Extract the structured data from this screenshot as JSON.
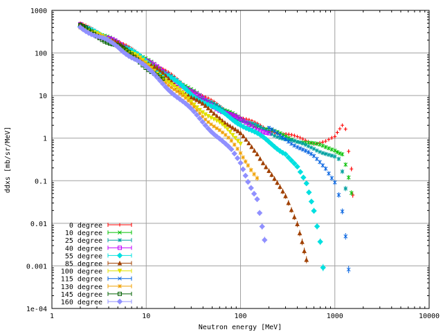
{
  "chart_data": {
    "type": "scatter",
    "title": "",
    "xlabel": "Neutron energy [MeV]",
    "ylabel": "ddxs [mb/sr/MeV]",
    "x_scale": "log",
    "y_scale": "log",
    "xlim": [
      1,
      10000
    ],
    "ylim": [
      0.0001,
      1000
    ],
    "x_ticks": [
      1,
      10,
      100,
      1000,
      10000
    ],
    "x_tick_labels": [
      "1",
      "10",
      "100",
      "1000",
      "10000"
    ],
    "y_ticks": [
      0.0001,
      0.001,
      0.01,
      0.1,
      1,
      10,
      100,
      1000
    ],
    "y_tick_labels": [
      "1e-04",
      "0.001",
      "0.01",
      "0.1",
      "1",
      "10",
      "100",
      "1000"
    ],
    "grid": true,
    "legend_position": "bottom-left",
    "series": [
      {
        "name": "0 degree",
        "color": "#ff0000",
        "marker": "plus",
        "points": [
          [
            2,
            480
          ],
          [
            3,
            300
          ],
          [
            5,
            180
          ],
          [
            8,
            100
          ],
          [
            15,
            40
          ],
          [
            30,
            14
          ],
          [
            60,
            5.5
          ],
          [
            100,
            3
          ],
          [
            200,
            1.6
          ],
          [
            400,
            1.0
          ],
          [
            600,
            0.8
          ],
          [
            800,
            0.85
          ],
          [
            1000,
            1.0
          ],
          [
            1200,
            1.9
          ],
          [
            1300,
            1.6
          ],
          [
            1400,
            0.5
          ],
          [
            1500,
            0.2
          ],
          [
            1550,
            0.05
          ]
        ]
      },
      {
        "name": "10 degree",
        "color": "#00c000",
        "marker": "x",
        "points": [
          [
            2,
            470
          ],
          [
            3,
            290
          ],
          [
            5,
            175
          ],
          [
            8,
            95
          ],
          [
            15,
            38
          ],
          [
            30,
            13
          ],
          [
            60,
            5.2
          ],
          [
            100,
            2.8
          ],
          [
            200,
            1.5
          ],
          [
            400,
            0.9
          ],
          [
            600,
            0.7
          ],
          [
            800,
            0.6
          ],
          [
            1000,
            0.55
          ],
          [
            1200,
            0.45
          ],
          [
            1300,
            0.25
          ],
          [
            1400,
            0.12
          ],
          [
            1500,
            0.05
          ]
        ]
      },
      {
        "name": "25 degree",
        "color": "#00a0a0",
        "marker": "star",
        "points": [
          [
            2,
            460
          ],
          [
            3,
            285
          ],
          [
            5,
            170
          ],
          [
            8,
            92
          ],
          [
            15,
            37
          ],
          [
            30,
            12.5
          ],
          [
            60,
            5
          ],
          [
            100,
            2.7
          ],
          [
            200,
            1.4
          ],
          [
            400,
            0.75
          ],
          [
            600,
            0.6
          ],
          [
            800,
            0.45
          ],
          [
            1000,
            0.35
          ],
          [
            1100,
            0.3
          ],
          [
            1200,
            0.15
          ],
          [
            1300,
            0.06
          ]
        ]
      },
      {
        "name": "40 degree",
        "color": "#c000ff",
        "marker": "square",
        "points": [
          [
            2,
            455
          ],
          [
            3,
            280
          ],
          [
            5,
            168
          ],
          [
            8,
            90
          ],
          [
            15,
            36
          ],
          [
            30,
            12
          ],
          [
            60,
            4.8
          ],
          [
            100,
            2.6
          ],
          [
            200,
            1.3
          ]
        ]
      },
      {
        "name": "55 degree",
        "color": "#00e0e0",
        "marker": "diamond",
        "points": [
          [
            2,
            450
          ],
          [
            3,
            275
          ],
          [
            5,
            165
          ],
          [
            8,
            88
          ],
          [
            15,
            35
          ],
          [
            30,
            11
          ],
          [
            60,
            4.2
          ],
          [
            100,
            2.2
          ],
          [
            200,
            0.8
          ],
          [
            300,
            0.45
          ],
          [
            400,
            0.2
          ],
          [
            500,
            0.08
          ],
          [
            600,
            0.02
          ],
          [
            700,
            0.004
          ],
          [
            750,
            0.001
          ]
        ]
      },
      {
        "name": "85 degree",
        "color": "#a04000",
        "marker": "triangle",
        "points": [
          [
            2,
            440
          ],
          [
            3,
            270
          ],
          [
            5,
            160
          ],
          [
            8,
            85
          ],
          [
            15,
            32
          ],
          [
            30,
            9
          ],
          [
            60,
            3.2
          ],
          [
            100,
            1.2
          ],
          [
            150,
            0.45
          ],
          [
            200,
            0.18
          ],
          [
            300,
            0.04
          ],
          [
            400,
            0.01
          ],
          [
            450,
            0.004
          ],
          [
            500,
            0.0015
          ]
        ]
      },
      {
        "name": "100 degree",
        "color": "#e0e000",
        "marker": "triangle-down",
        "points": [
          [
            2,
            435
          ],
          [
            3,
            265
          ],
          [
            5,
            155
          ],
          [
            8,
            80
          ],
          [
            15,
            28
          ],
          [
            30,
            7
          ],
          [
            60,
            2.2
          ],
          [
            100,
            0.8
          ]
        ]
      },
      {
        "name": "115 degree",
        "color": "#0060e0",
        "marker": "x",
        "points": [
          [
            200,
            1.6
          ],
          [
            300,
            1.0
          ],
          [
            400,
            0.65
          ],
          [
            600,
            0.35
          ],
          [
            800,
            0.2
          ],
          [
            1000,
            0.1
          ],
          [
            1100,
            0.05
          ],
          [
            1200,
            0.02
          ],
          [
            1300,
            0.005
          ],
          [
            1400,
            0.0008
          ]
        ]
      },
      {
        "name": "130 degree",
        "color": "#f0a000",
        "marker": "star",
        "points": [
          [
            2,
            430
          ],
          [
            3,
            258
          ],
          [
            5,
            150
          ],
          [
            8,
            75
          ],
          [
            15,
            25
          ],
          [
            30,
            6
          ],
          [
            60,
            1.5
          ],
          [
            80,
            0.8
          ],
          [
            100,
            0.45
          ],
          [
            120,
            0.25
          ],
          [
            150,
            0.12
          ]
        ]
      },
      {
        "name": "145 degree",
        "color": "#006000",
        "marker": "square",
        "points": [
          [
            2,
            425
          ],
          [
            3,
            252
          ],
          [
            5,
            145
          ],
          [
            8,
            72
          ],
          [
            15,
            23
          ]
        ]
      },
      {
        "name": "160 degree",
        "color": "#9090ff",
        "marker": "diamond",
        "points": [
          [
            2,
            420
          ],
          [
            3,
            248
          ],
          [
            5,
            140
          ],
          [
            8,
            68
          ],
          [
            15,
            20
          ],
          [
            30,
            4.5
          ],
          [
            60,
            1.0
          ],
          [
            80,
            0.5
          ],
          [
            100,
            0.25
          ],
          [
            120,
            0.1
          ],
          [
            150,
            0.04
          ],
          [
            180,
            0.004
          ]
        ]
      }
    ]
  }
}
